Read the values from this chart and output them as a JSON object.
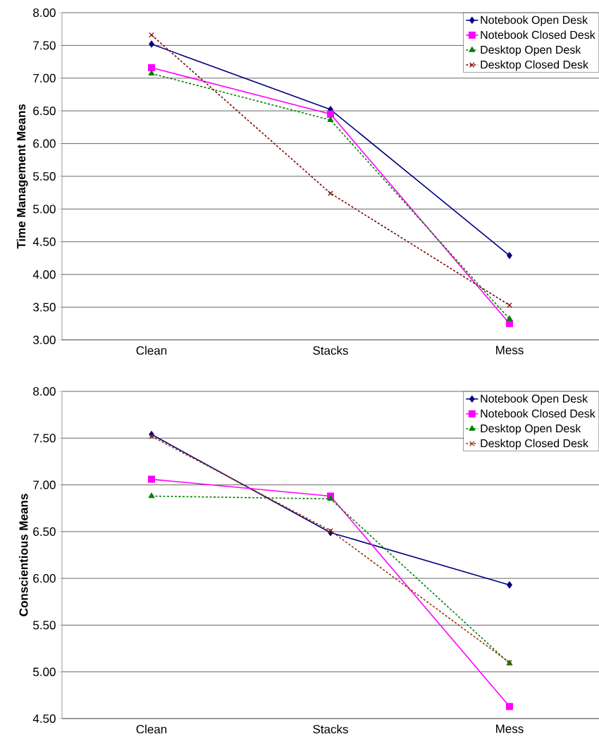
{
  "chart_data": [
    {
      "type": "line",
      "ylabel": "Time Management Means",
      "categories": [
        "Clean",
        "Stacks",
        "Mess"
      ],
      "ylim": [
        3,
        8
      ],
      "yticks": [
        {
          "value": 3,
          "label": "3.00"
        },
        {
          "value": 3.5,
          "label": "3.50"
        },
        {
          "value": 4,
          "label": "4.00"
        },
        {
          "value": 4.5,
          "label": "4.50"
        },
        {
          "value": 5,
          "label": "5.00"
        },
        {
          "value": 5.5,
          "label": "5.50"
        },
        {
          "value": 6,
          "label": "6.00"
        },
        {
          "value": 6.5,
          "label": "6.50"
        },
        {
          "value": 7,
          "label": "7.00"
        },
        {
          "value": 7.5,
          "label": "7.50"
        },
        {
          "value": 8,
          "label": "8.00"
        }
      ],
      "grid": "y",
      "legend": "top right",
      "series": [
        {
          "name": "Notebook Open Desk",
          "color": "#000080",
          "values": [
            7.52,
            6.52,
            4.29
          ],
          "marker": "diamond",
          "line_style": "solid"
        },
        {
          "name": "Notebook Closed Desk",
          "color": "#ff00ff",
          "values": [
            7.16,
            6.45,
            3.25
          ],
          "marker": "square",
          "line_style": "solid"
        },
        {
          "name": "Desktop Open Desk",
          "color": "#008000",
          "values": [
            7.07,
            6.36,
            3.32
          ],
          "marker": "triangle",
          "line_style": "dashed"
        },
        {
          "name": "Desktop Closed Desk",
          "color": "#800000",
          "values": [
            7.66,
            5.24,
            3.53
          ],
          "marker": "cross",
          "line_style": "dashed"
        }
      ]
    },
    {
      "type": "line",
      "ylabel": "Conscientious Means",
      "categories": [
        "Clean",
        "Stacks",
        "Mess"
      ],
      "ylim": [
        4.5,
        8
      ],
      "yticks": [
        {
          "value": 4.5,
          "label": "4.50"
        },
        {
          "value": 5,
          "label": "5.00"
        },
        {
          "value": 5.5,
          "label": "5.50"
        },
        {
          "value": 6,
          "label": "6.00"
        },
        {
          "value": 6.5,
          "label": "6.50"
        },
        {
          "value": 7,
          "label": "7.00"
        },
        {
          "value": 7.5,
          "label": "7.50"
        },
        {
          "value": 8,
          "label": "8.00"
        }
      ],
      "grid": "y",
      "legend": "top right",
      "series": [
        {
          "name": "Notebook Open Desk",
          "color": "#000080",
          "values": [
            7.54,
            6.49,
            5.93
          ],
          "marker": "diamond",
          "line_style": "solid"
        },
        {
          "name": "Notebook Closed Desk",
          "color": "#ff00ff",
          "values": [
            7.06,
            6.88,
            4.63
          ],
          "marker": "square",
          "line_style": "solid"
        },
        {
          "name": "Desktop Open Desk",
          "color": "#008000",
          "values": [
            6.88,
            6.85,
            5.09
          ],
          "marker": "triangle",
          "line_style": "dashed"
        },
        {
          "name": "Desktop Closed Desk",
          "color": "#993300",
          "values": [
            7.52,
            6.51,
            5.1
          ],
          "marker": "cross",
          "line_style": "dashed"
        }
      ]
    }
  ]
}
